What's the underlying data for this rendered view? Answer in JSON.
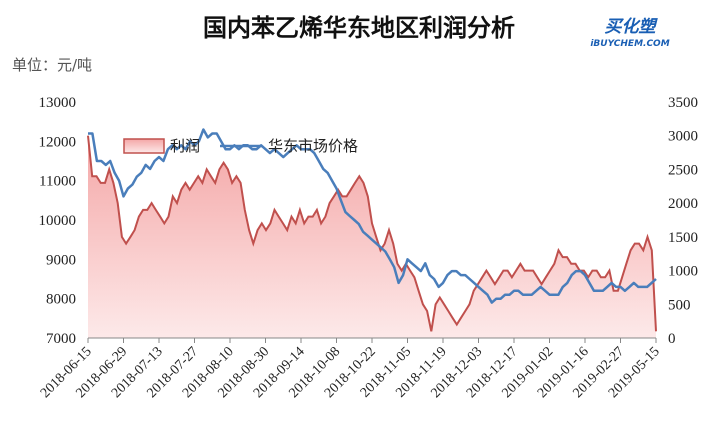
{
  "header": {
    "title": "国内苯乙烯华东地区利润分析",
    "unit": "单位：元/吨",
    "logo": {
      "main": "买化塑",
      "sub": "iBUYCHEM.COM"
    }
  },
  "colors": {
    "profit_line": "#c0504d",
    "profit_fill_top": "#f4a6a6",
    "profit_fill_bottom": "#fde9e9",
    "price_line": "#4a7ebb"
  },
  "chart_data": {
    "type": "area",
    "title": "国内苯乙烯华东地区利润分析",
    "legend": {
      "position": "top-left",
      "entries": [
        "利润",
        "华东市场价格"
      ]
    },
    "x_tick_labels": [
      "2018-06-15",
      "2018-06-29",
      "2018-07-13",
      "2018-07-27",
      "2018-08-10",
      "2018-08-30",
      "2018-09-14",
      "2018-10-08",
      "2018-10-22",
      "2018-11-05",
      "2018-11-19",
      "2018-12-03",
      "2018-12-17",
      "2019-01-02",
      "2019-01-16",
      "2019-02-27",
      "2019-05-15"
    ],
    "left_axis": {
      "min": 7000,
      "max": 13000,
      "ticks": [
        7000,
        8000,
        9000,
        10000,
        11000,
        12000,
        13000
      ]
    },
    "right_axis": {
      "min": 0,
      "max": 3500,
      "ticks": [
        0,
        500,
        1000,
        1500,
        2000,
        2500,
        3000,
        3500
      ]
    },
    "series": [
      {
        "name": "利润",
        "axis": "right",
        "style": "area",
        "values": [
          3000,
          2400,
          2400,
          2300,
          2300,
          2500,
          2300,
          2000,
          1500,
          1400,
          1500,
          1600,
          1800,
          1900,
          1900,
          2000,
          1900,
          1800,
          1700,
          1800,
          2100,
          2000,
          2200,
          2300,
          2200,
          2300,
          2400,
          2300,
          2500,
          2400,
          2300,
          2500,
          2600,
          2500,
          2300,
          2400,
          2300,
          1900,
          1600,
          1400,
          1600,
          1700,
          1600,
          1700,
          1900,
          1800,
          1700,
          1600,
          1800,
          1700,
          1900,
          1700,
          1800,
          1800,
          1900,
          1700,
          1800,
          2000,
          2100,
          2200,
          2100,
          2100,
          2200,
          2300,
          2400,
          2300,
          2100,
          1700,
          1500,
          1300,
          1400,
          1600,
          1400,
          1100,
          1000,
          1100,
          1000,
          900,
          700,
          500,
          400,
          100,
          500,
          600,
          500,
          400,
          300,
          200,
          300,
          400,
          500,
          700,
          800,
          900,
          1000,
          900,
          800,
          900,
          1000,
          1000,
          900,
          1000,
          1100,
          1000,
          1000,
          1000,
          900,
          800,
          900,
          1000,
          1100,
          1300,
          1200,
          1200,
          1100,
          1100,
          1000,
          1000,
          900,
          1000,
          1000,
          900,
          900,
          1000,
          700,
          700,
          900,
          1100,
          1300,
          1400,
          1400,
          1300,
          1500,
          1300,
          100
        ],
        "note": "profit values in 元/吨 on right axis"
      },
      {
        "name": "华东市场价格",
        "axis": "left",
        "style": "line",
        "values": [
          12200,
          12200,
          11500,
          11500,
          11400,
          11500,
          11200,
          11000,
          10600,
          10800,
          10900,
          11100,
          11200,
          11400,
          11300,
          11500,
          11600,
          11500,
          11800,
          11900,
          11800,
          11900,
          11800,
          12000,
          11900,
          12000,
          12300,
          12100,
          12200,
          12200,
          12000,
          11800,
          11800,
          11900,
          11800,
          11900,
          11900,
          11800,
          11800,
          11900,
          11800,
          11700,
          11800,
          11700,
          11600,
          11700,
          11800,
          11900,
          11800,
          11800,
          11800,
          11700,
          11500,
          11300,
          11200,
          11000,
          10800,
          10500,
          10200,
          10100,
          10000,
          9900,
          9700,
          9600,
          9500,
          9400,
          9300,
          9200,
          9000,
          8800,
          8400,
          8600,
          9000,
          8900,
          8800,
          8700,
          8900,
          8600,
          8500,
          8300,
          8400,
          8600,
          8700,
          8700,
          8600,
          8600,
          8500,
          8400,
          8300,
          8200,
          8100,
          7900,
          8000,
          8000,
          8100,
          8100,
          8200,
          8200,
          8100,
          8100,
          8100,
          8200,
          8300,
          8200,
          8100,
          8100,
          8100,
          8300,
          8400,
          8600,
          8700,
          8700,
          8600,
          8400,
          8200,
          8200,
          8200,
          8300,
          8400,
          8300,
          8300,
          8200,
          8300,
          8400,
          8300,
          8300,
          8300,
          8400,
          8500
        ],
        "note": "price in 元/吨 on left axis"
      }
    ]
  }
}
